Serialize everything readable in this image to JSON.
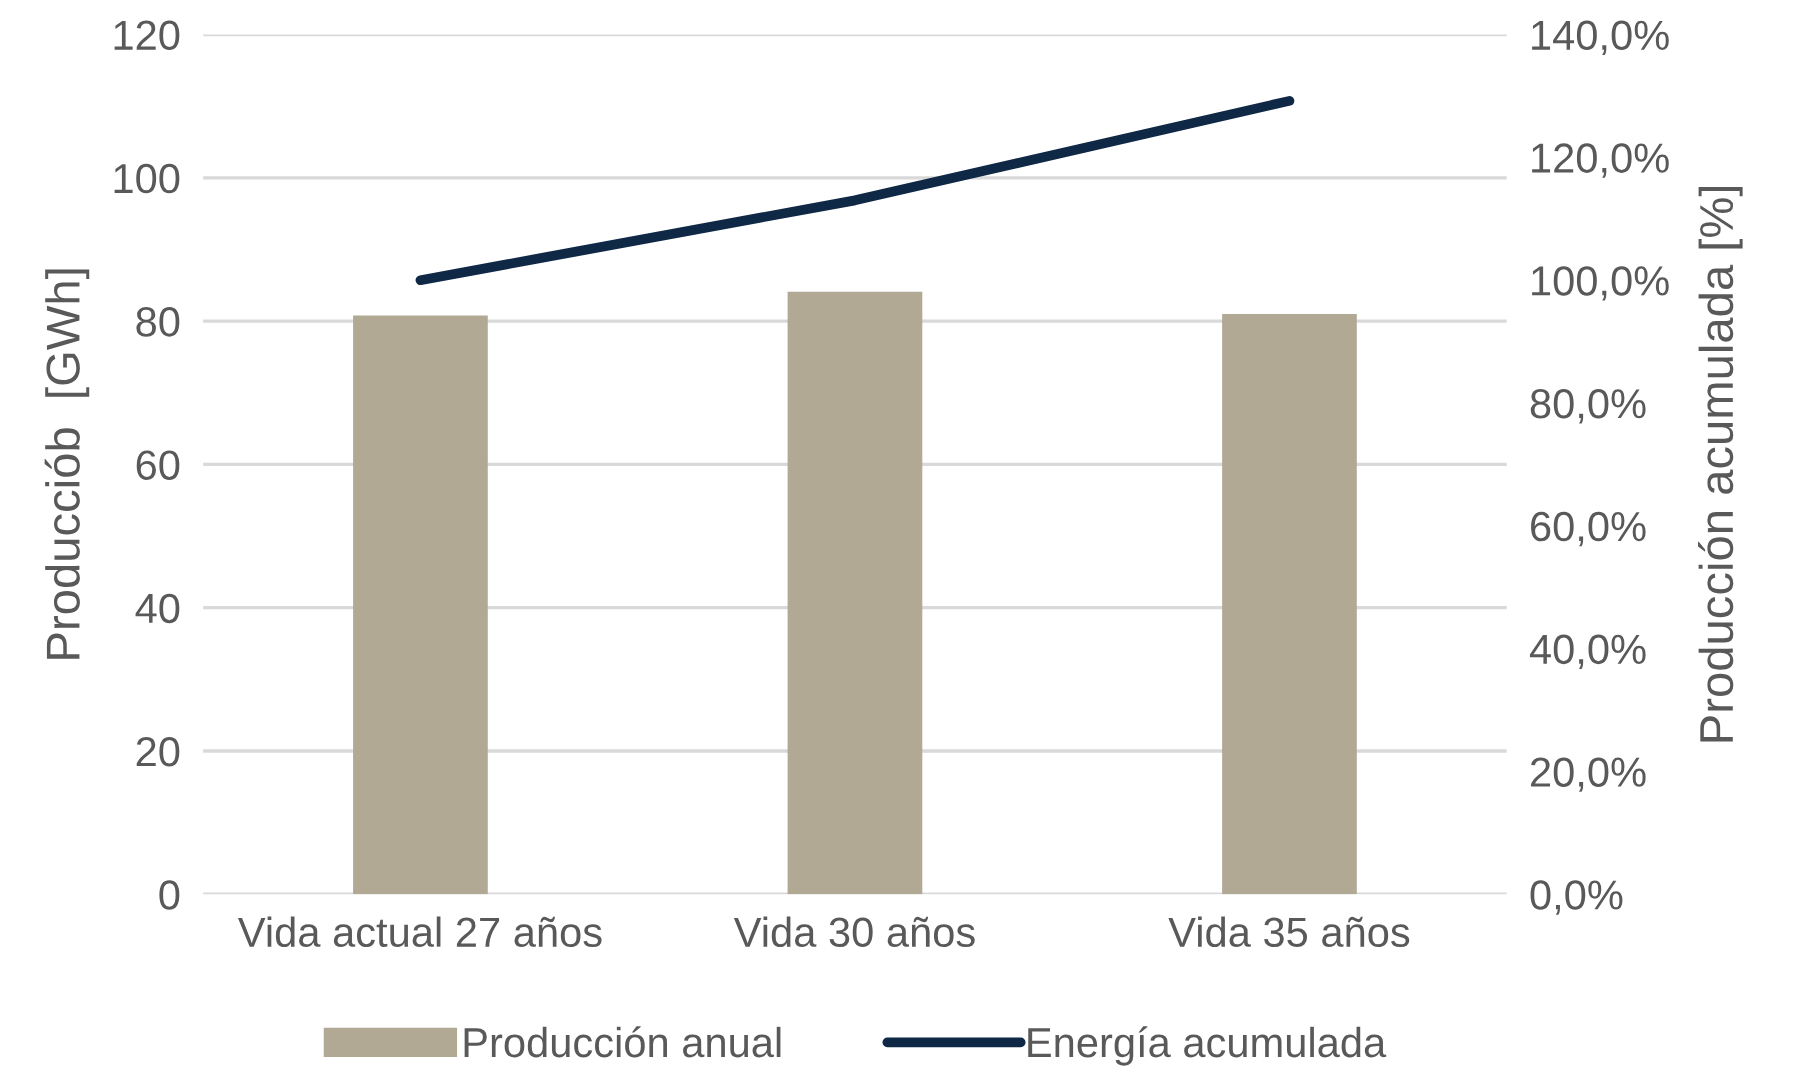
{
  "chart_data": {
    "type": "bar",
    "categories": [
      "Vida actual 27 años",
      "Vida 30 años",
      "Vida 35 años"
    ],
    "series": [
      {
        "name": "Producción anual",
        "color": "#b2a995",
        "values": [
          80.8,
          84.1,
          81.0
        ]
      },
      {
        "name": "Energía acumulada",
        "type": "line",
        "axis": "y2",
        "color": "#0f2846",
        "values": [
          100,
          113,
          129.2
        ]
      }
    ],
    "ylabel": "Producciób  [GWh]",
    "y2label": "Producción acumulada [%]",
    "ylim": [
      0,
      120
    ],
    "yticks": [
      0,
      20,
      40,
      60,
      80,
      100,
      120
    ],
    "y2lim": [
      0,
      140
    ],
    "y2ticks": [
      {
        "value": 0,
        "label": "0,0%"
      },
      {
        "value": 20,
        "label": "20,0%"
      },
      {
        "value": 40,
        "label": "40,0%"
      },
      {
        "value": 60,
        "label": "60,0%"
      },
      {
        "value": 80,
        "label": "80,0%"
      },
      {
        "value": 100,
        "label": "100,0%"
      },
      {
        "value": 120,
        "label": "120,0%"
      },
      {
        "value": 140,
        "label": "140,0%"
      }
    ],
    "grid": "y",
    "legend": "bottom",
    "marker": "none",
    "line_style": "solid"
  }
}
